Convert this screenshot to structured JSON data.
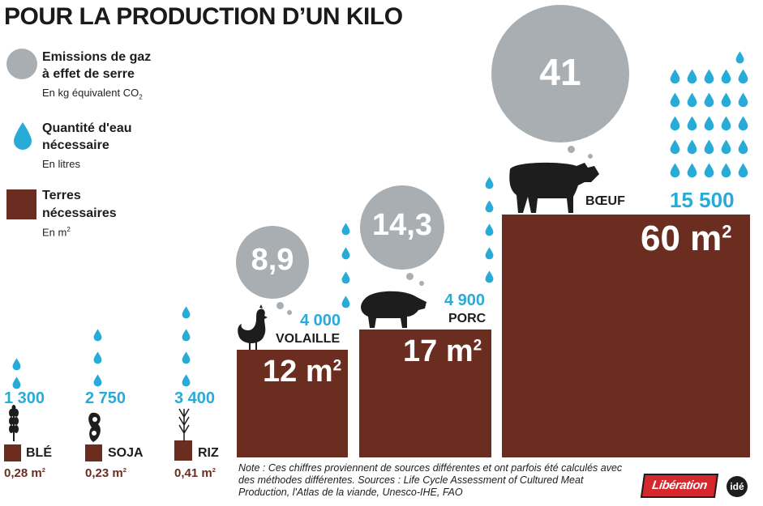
{
  "title": "POUR LA PRODUCTION D’UN KILO",
  "legend": {
    "gas": {
      "label1": "Emissions de gaz",
      "label2": "à effet de serre",
      "unit": "En kg équivalent CO",
      "unit_sub": "2"
    },
    "water": {
      "label1": "Quantité d'eau",
      "label2": "nécessaire",
      "unit": "En litres"
    },
    "land": {
      "label1": "Terres",
      "label2": "nécessaires",
      "unit": "En m",
      "unit_sup": "2"
    }
  },
  "colors": {
    "land": "#6b2d20",
    "water": "#29abd7",
    "gas": "#a9aeb2"
  },
  "chart_data": {
    "type": "other",
    "title": "POUR LA PRODUCTION D’UN KILO",
    "items": [
      {
        "name": "BLÉ",
        "land_m2": 0.28,
        "land_label": "0,28 m",
        "water_l": 1300,
        "water_label": "1 300",
        "gas_kg_co2": null,
        "icon": "wheat-icon"
      },
      {
        "name": "SOJA",
        "land_m2": 0.23,
        "land_label": "0,23 m",
        "water_l": 2750,
        "water_label": "2 750",
        "gas_kg_co2": null,
        "icon": "soybean-icon"
      },
      {
        "name": "RIZ",
        "land_m2": 0.41,
        "land_label": "0,41 m",
        "water_l": 3400,
        "water_label": "3 400",
        "gas_kg_co2": null,
        "icon": "rice-icon"
      },
      {
        "name": "VOLAILLE",
        "land_m2": 12,
        "land_label": "12 m",
        "water_l": 4000,
        "water_label": "4 000",
        "gas_kg_co2": 8.9,
        "gas_label": "8,9",
        "icon": "chicken-icon"
      },
      {
        "name": "PORC",
        "land_m2": 17,
        "land_label": "17 m",
        "water_l": 4900,
        "water_label": "4 900",
        "gas_kg_co2": 14.3,
        "gas_label": "14,3",
        "icon": "pig-icon"
      },
      {
        "name": "BŒUF",
        "land_m2": 60,
        "land_label": "60 m",
        "water_l": 15500,
        "water_label": "15 500",
        "gas_kg_co2": 41,
        "gas_label": "41",
        "icon": "cow-icon"
      }
    ],
    "sup": "2"
  },
  "note": "Note : Ces chiffres proviennent de sources différentes et ont parfois été calculés avec des méthodes différentes. Sources : Life Cycle Assessment of Cultured Meat Production, l'Atlas de la viande, Unesco-IHE, FAO",
  "logo": {
    "brand": "Libération",
    "badge": "idé"
  }
}
